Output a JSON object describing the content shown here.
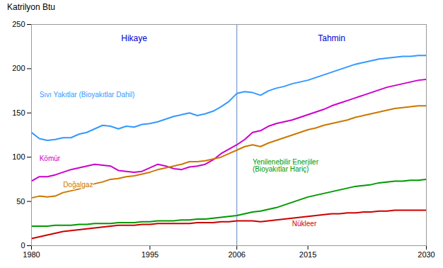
{
  "chart_data": {
    "type": "line",
    "ylabel": "Katrilyon Btu",
    "x": [
      1980,
      1981,
      1982,
      1983,
      1984,
      1985,
      1986,
      1987,
      1988,
      1989,
      1990,
      1991,
      1992,
      1993,
      1994,
      1995,
      1996,
      1997,
      1998,
      1999,
      2000,
      2001,
      2002,
      2003,
      2004,
      2005,
      2006,
      2007,
      2008,
      2009,
      2010,
      2011,
      2012,
      2013,
      2014,
      2015,
      2016,
      2017,
      2018,
      2019,
      2020,
      2021,
      2022,
      2023,
      2024,
      2025,
      2026,
      2027,
      2028,
      2029,
      2030
    ],
    "series": [
      {
        "name": "Sıvı Yakıtlar (Bioyakıtlar Dahil)",
        "color": "#3399ff",
        "values": [
          128,
          121,
          119,
          120,
          122,
          122,
          126,
          128,
          132,
          136,
          135,
          132,
          135,
          134,
          137,
          138,
          140,
          143,
          146,
          148,
          150,
          147,
          149,
          152,
          157,
          163,
          172,
          174,
          173,
          170,
          175,
          178,
          180,
          183,
          185,
          187,
          190,
          193,
          196,
          199,
          202,
          205,
          207,
          209,
          211,
          212,
          213,
          214,
          214,
          215,
          215
        ],
        "annotation": {
          "x": 1981,
          "y": 168
        }
      },
      {
        "name": "Kömür",
        "color": "#cc00cc",
        "values": [
          73,
          78,
          78,
          80,
          83,
          86,
          88,
          90,
          92,
          91,
          90,
          85,
          84,
          83,
          84,
          88,
          92,
          90,
          87,
          86,
          89,
          90,
          92,
          97,
          104,
          109,
          114,
          120,
          128,
          130,
          135,
          138,
          140,
          142,
          145,
          148,
          151,
          154,
          158,
          161,
          164,
          167,
          170,
          173,
          176,
          179,
          181,
          183,
          185,
          187,
          188
        ],
        "annotation": {
          "x": 1981,
          "y": 96
        }
      },
      {
        "name": "Doğalgaz",
        "color": "#cc7700",
        "values": [
          54,
          56,
          55,
          56,
          60,
          62,
          64,
          67,
          70,
          72,
          75,
          76,
          78,
          79,
          81,
          83,
          86,
          88,
          90,
          92,
          95,
          95,
          96,
          98,
          100,
          104,
          108,
          112,
          114,
          112,
          116,
          119,
          122,
          125,
          128,
          131,
          133,
          136,
          138,
          140,
          142,
          145,
          147,
          149,
          151,
          153,
          155,
          156,
          157,
          158,
          158
        ],
        "annotation": {
          "x": 1984,
          "y": 66
        }
      },
      {
        "name": "Yenilenebilir Enerjiler\n(Bioyakıtlar Hariç)",
        "color": "#009900",
        "values": [
          22,
          22,
          22,
          23,
          23,
          23,
          24,
          24,
          25,
          25,
          25,
          26,
          26,
          26,
          27,
          27,
          28,
          28,
          28,
          29,
          29,
          30,
          30,
          31,
          32,
          33,
          34,
          36,
          38,
          39,
          41,
          43,
          46,
          49,
          52,
          55,
          57,
          59,
          61,
          63,
          65,
          67,
          68,
          69,
          71,
          72,
          73,
          73,
          74,
          74,
          75
        ],
        "annotation": {
          "x": 2008,
          "y": 90
        }
      },
      {
        "name": "Nükleer",
        "color": "#cc0000",
        "values": [
          8,
          10,
          12,
          14,
          16,
          17,
          18,
          19,
          20,
          21,
          22,
          23,
          23,
          23,
          24,
          24,
          25,
          25,
          25,
          25,
          25,
          26,
          26,
          26,
          27,
          27,
          28,
          28,
          28,
          27,
          28,
          29,
          30,
          31,
          32,
          33,
          34,
          35,
          36,
          36,
          37,
          37,
          38,
          38,
          39,
          39,
          40,
          40,
          40,
          40,
          40
        ],
        "annotation": {
          "x": 2013,
          "y": 22
        }
      }
    ],
    "vline": {
      "x": 2006,
      "color": "#7799cc"
    },
    "annotations": [
      {
        "text": "Hikaye",
        "x": 1993,
        "y": 238,
        "color": "#0000cc"
      },
      {
        "text": "Tahmin",
        "x": 2018,
        "y": 238,
        "color": "#0000cc"
      }
    ],
    "xlim": [
      1980,
      2030
    ],
    "xticks": [
      1980,
      1995,
      2006,
      2015,
      2030
    ],
    "ylim": [
      0,
      250
    ],
    "yticks": [
      0,
      50,
      100,
      150,
      200,
      250
    ],
    "grid": false
  }
}
